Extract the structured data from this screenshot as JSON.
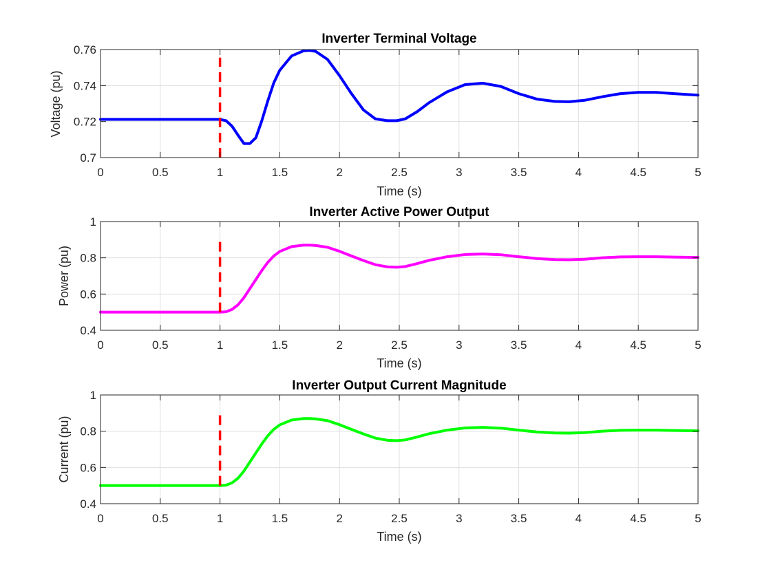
{
  "chart_data": [
    {
      "type": "line",
      "title": "Inverter Terminal Voltage",
      "xlabel": "Time (s)",
      "ylabel": "Voltage (pu)",
      "xlim": [
        0,
        5
      ],
      "ylim": [
        0.7,
        0.76
      ],
      "xticks": [
        0,
        0.5,
        1,
        1.5,
        2,
        2.5,
        3,
        3.5,
        4,
        4.5,
        5
      ],
      "xtick_labels": [
        "0",
        "0.5",
        "1",
        "1.5",
        "2",
        "2.5",
        "3",
        "3.5",
        "4",
        "4.5",
        "5"
      ],
      "yticks": [
        0.7,
        0.72,
        0.74,
        0.76
      ],
      "ytick_labels": [
        "0.7",
        "0.72",
        "0.74",
        "0.76"
      ],
      "grid": true,
      "series": [
        {
          "color": "#0000ff",
          "x": [
            0,
            1.0,
            1.05,
            1.1,
            1.15,
            1.2,
            1.25,
            1.3,
            1.35,
            1.4,
            1.45,
            1.5,
            1.6,
            1.7,
            1.75,
            1.8,
            1.9,
            2.0,
            2.1,
            2.2,
            2.3,
            2.4,
            2.48,
            2.55,
            2.65,
            2.75,
            2.9,
            3.05,
            3.2,
            3.35,
            3.5,
            3.65,
            3.8,
            3.92,
            4.05,
            4.2,
            4.35,
            4.5,
            4.65,
            4.8,
            5.0
          ],
          "y": [
            0.7212,
            0.7212,
            0.7205,
            0.7175,
            0.7125,
            0.7078,
            0.7078,
            0.711,
            0.7205,
            0.7315,
            0.7415,
            0.7485,
            0.7565,
            0.7593,
            0.7595,
            0.759,
            0.7545,
            0.7455,
            0.7355,
            0.7265,
            0.7215,
            0.7205,
            0.7205,
            0.7215,
            0.7255,
            0.7305,
            0.7365,
            0.7405,
            0.7413,
            0.7395,
            0.7355,
            0.7325,
            0.7312,
            0.731,
            0.7318,
            0.7338,
            0.7355,
            0.7362,
            0.7362,
            0.7355,
            0.7347
          ]
        },
        {
          "color": "#ff0000",
          "dashed": true,
          "x": [
            1,
            1
          ],
          "y": [
            0.7,
            0.7555
          ]
        }
      ]
    },
    {
      "type": "line",
      "title": "Inverter Active Power Output",
      "xlabel": "Time (s)",
      "ylabel": "Power (pu)",
      "xlim": [
        0,
        5
      ],
      "ylim": [
        0.4,
        1
      ],
      "xticks": [
        0,
        0.5,
        1,
        1.5,
        2,
        2.5,
        3,
        3.5,
        4,
        4.5,
        5
      ],
      "xtick_labels": [
        "0",
        "0.5",
        "1",
        "1.5",
        "2",
        "2.5",
        "3",
        "3.5",
        "4",
        "4.5",
        "5"
      ],
      "yticks": [
        0.4,
        0.6,
        0.8,
        1
      ],
      "ytick_labels": [
        "0.4",
        "0.6",
        "0.8",
        "1"
      ],
      "grid": true,
      "series": [
        {
          "color": "#ff00ff",
          "x": [
            0,
            1.0,
            1.05,
            1.1,
            1.15,
            1.2,
            1.25,
            1.3,
            1.35,
            1.4,
            1.45,
            1.5,
            1.6,
            1.7,
            1.75,
            1.8,
            1.9,
            2.0,
            2.1,
            2.2,
            2.3,
            2.4,
            2.48,
            2.55,
            2.65,
            2.75,
            2.9,
            3.05,
            3.2,
            3.35,
            3.5,
            3.65,
            3.8,
            3.92,
            4.05,
            4.2,
            4.35,
            4.5,
            4.65,
            4.8,
            5.0
          ],
          "y": [
            0.5,
            0.5,
            0.502,
            0.515,
            0.54,
            0.58,
            0.63,
            0.68,
            0.73,
            0.775,
            0.81,
            0.835,
            0.862,
            0.87,
            0.87,
            0.868,
            0.858,
            0.836,
            0.81,
            0.785,
            0.762,
            0.75,
            0.748,
            0.752,
            0.768,
            0.786,
            0.806,
            0.818,
            0.821,
            0.817,
            0.806,
            0.796,
            0.79,
            0.789,
            0.792,
            0.8,
            0.805,
            0.806,
            0.806,
            0.804,
            0.802
          ]
        },
        {
          "color": "#ff0000",
          "dashed": true,
          "x": [
            1,
            1
          ],
          "y": [
            0.5,
            0.9
          ]
        }
      ]
    },
    {
      "type": "line",
      "title": "Inverter Output Current Magnitude",
      "xlabel": "Time (s)",
      "ylabel": "Current (pu)",
      "xlim": [
        0,
        5
      ],
      "ylim": [
        0.4,
        1
      ],
      "xticks": [
        0,
        0.5,
        1,
        1.5,
        2,
        2.5,
        3,
        3.5,
        4,
        4.5,
        5
      ],
      "xtick_labels": [
        "0",
        "0.5",
        "1",
        "1.5",
        "2",
        "2.5",
        "3",
        "3.5",
        "4",
        "4.5",
        "5"
      ],
      "yticks": [
        0.4,
        0.6,
        0.8,
        1
      ],
      "ytick_labels": [
        "0.4",
        "0.6",
        "0.8",
        "1"
      ],
      "grid": true,
      "series": [
        {
          "color": "#00ff00",
          "x": [
            0,
            1.0,
            1.05,
            1.1,
            1.15,
            1.2,
            1.25,
            1.3,
            1.35,
            1.4,
            1.45,
            1.5,
            1.6,
            1.7,
            1.75,
            1.8,
            1.9,
            2.0,
            2.1,
            2.2,
            2.3,
            2.4,
            2.48,
            2.55,
            2.65,
            2.75,
            2.9,
            3.05,
            3.2,
            3.35,
            3.5,
            3.65,
            3.8,
            3.92,
            4.05,
            4.2,
            4.35,
            4.5,
            4.65,
            4.8,
            5.0
          ],
          "y": [
            0.5,
            0.5,
            0.502,
            0.515,
            0.54,
            0.58,
            0.63,
            0.68,
            0.73,
            0.775,
            0.81,
            0.835,
            0.862,
            0.87,
            0.87,
            0.868,
            0.858,
            0.836,
            0.81,
            0.785,
            0.762,
            0.75,
            0.748,
            0.752,
            0.768,
            0.786,
            0.806,
            0.818,
            0.821,
            0.817,
            0.806,
            0.796,
            0.79,
            0.789,
            0.792,
            0.8,
            0.805,
            0.806,
            0.806,
            0.804,
            0.802
          ]
        },
        {
          "color": "#ff0000",
          "dashed": true,
          "x": [
            1,
            1
          ],
          "y": [
            0.5,
            0.9
          ]
        }
      ]
    }
  ]
}
